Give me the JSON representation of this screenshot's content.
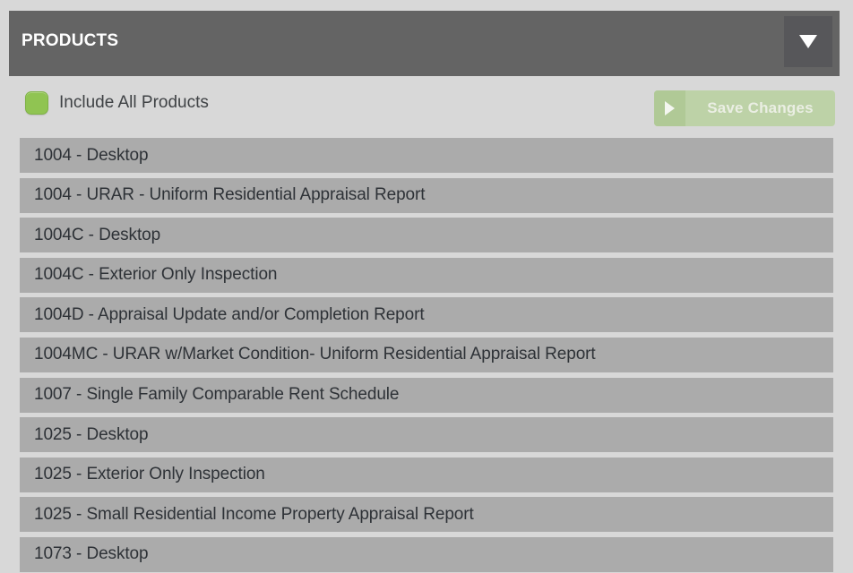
{
  "panel": {
    "title": "PRODUCTS",
    "collapse_icon": "chevron-down"
  },
  "toolbar": {
    "include_all_label": "Include All Products",
    "save_button_label": "Save Changes",
    "save_button_icon": "play-right"
  },
  "products": [
    "1004 - Desktop",
    "1004 - URAR - Uniform Residential Appraisal Report",
    "1004C - Desktop",
    "1004C - Exterior Only Inspection",
    "1004D - Appraisal Update and/or Completion Report",
    "1004MC - URAR w/Market Condition- Uniform Residential Appraisal Report",
    "1007 - Single Family Comparable Rent Schedule",
    "1025 - Desktop",
    "1025 - Exterior Only Inspection",
    "1025 - Small Residential Income Property Appraisal Report",
    "1073 - Desktop"
  ],
  "colors": {
    "page_bg": "#d8d8d8",
    "header_bg": "#646464",
    "header_button_bg": "#57575a",
    "header_text": "#ffffff",
    "row_bg": "#ababab",
    "row_text": "#2e3237",
    "checkbox_green": "#90c452",
    "checkbox_border": "#7fb246",
    "save_button_bg": "#bdd2a7",
    "save_button_accent": "#b0c996",
    "save_button_text": "#eaeee3"
  }
}
